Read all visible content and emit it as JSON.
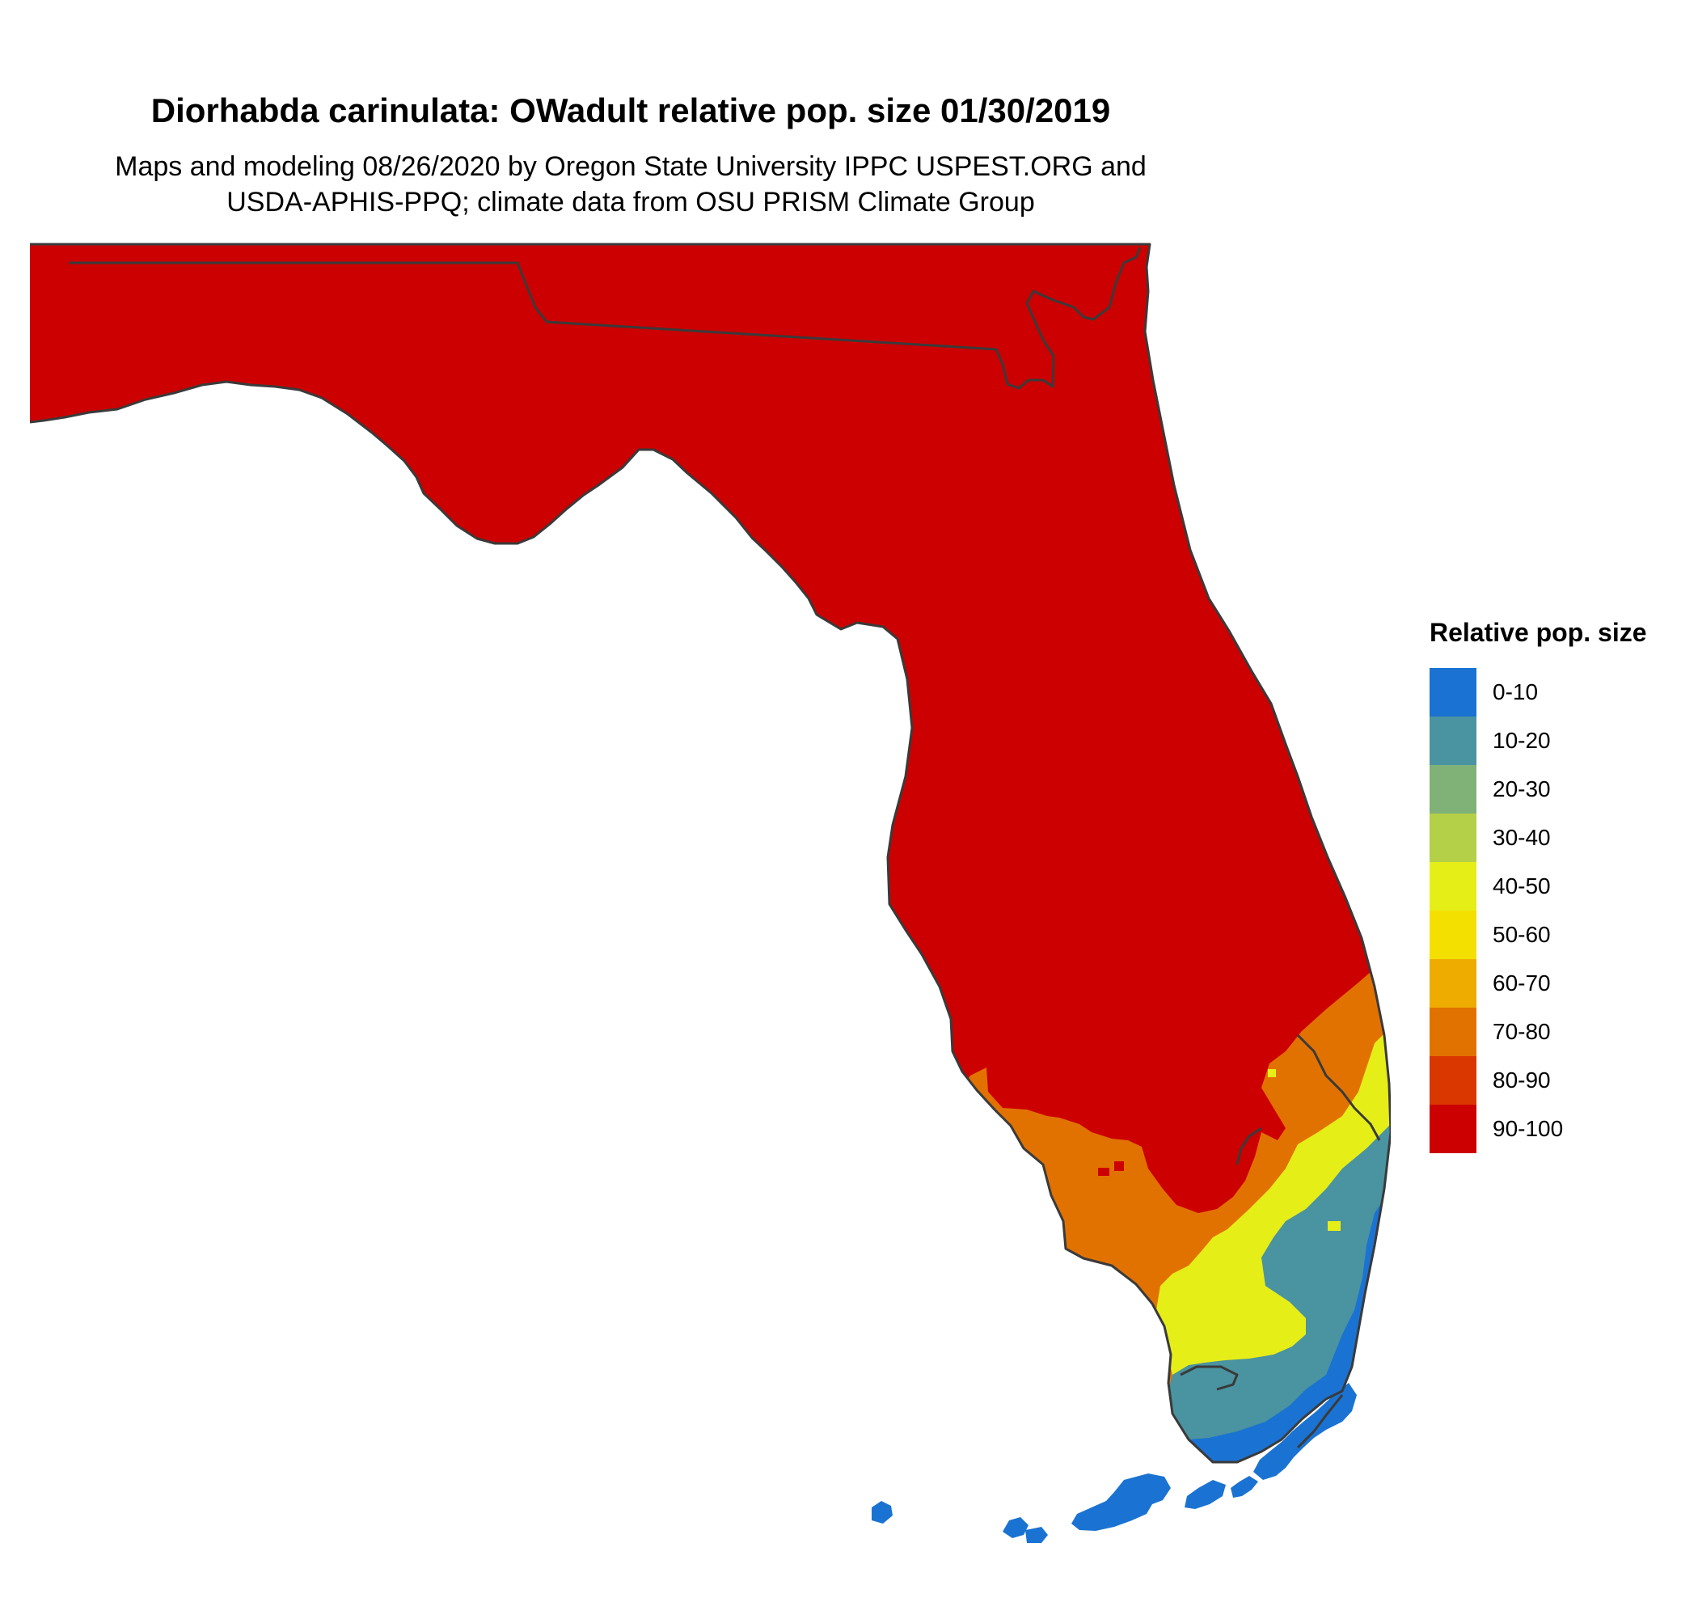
{
  "title": "Diorhabda carinulata: OWadult relative pop. size 01/30/2019",
  "subtitle_line1": "Maps and modeling 08/26/2020 by Oregon State University IPPC USPEST.ORG and",
  "subtitle_line2": "USDA-APHIS-PPQ; climate data from OSU PRISM Climate Group",
  "region": "Florida",
  "legend": {
    "title": "Relative pop. size",
    "items": [
      {
        "label": "0-10",
        "color": "#1a73d2"
      },
      {
        "label": "10-20",
        "color": "#4a93a0"
      },
      {
        "label": "20-30",
        "color": "#80b277"
      },
      {
        "label": "30-40",
        "color": "#b4d048"
      },
      {
        "label": "40-50",
        "color": "#e6ee18"
      },
      {
        "label": "50-60",
        "color": "#f4e000"
      },
      {
        "label": "60-70",
        "color": "#eeac00"
      },
      {
        "label": "70-80",
        "color": "#e27200"
      },
      {
        "label": "80-90",
        "color": "#d93600"
      },
      {
        "label": "90-100",
        "color": "#cc0000"
      }
    ]
  },
  "outline_color": "#3a3a3a"
}
